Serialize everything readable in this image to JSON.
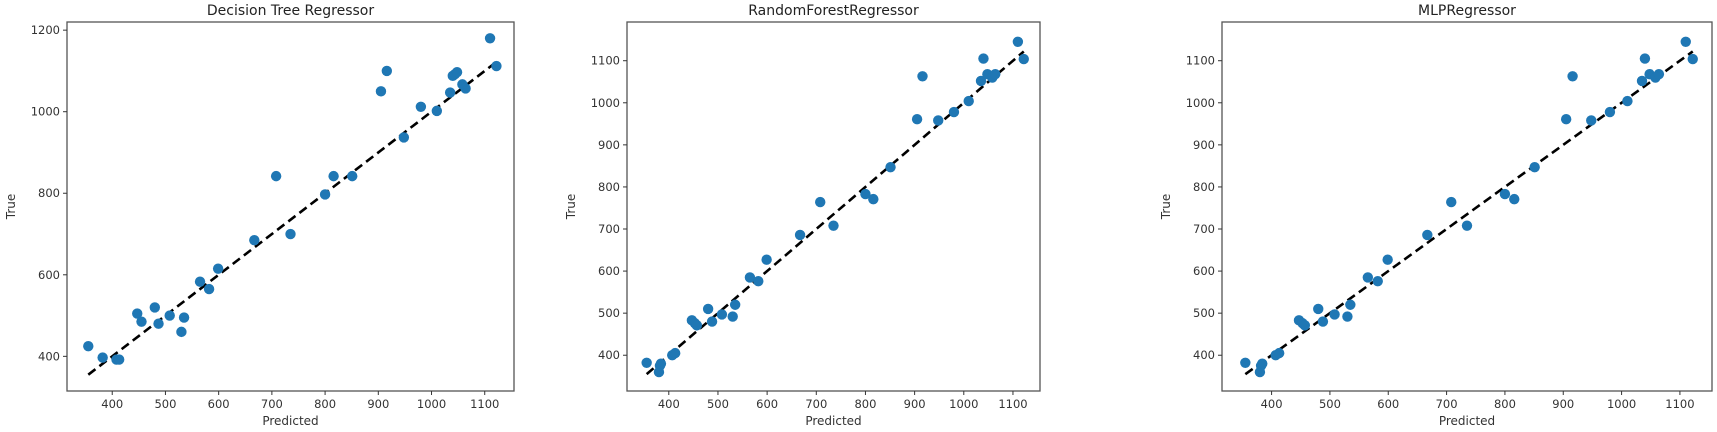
{
  "figure": {
    "background": "#ffffff",
    "marker_color": "#1f77b4",
    "line_color": "#000000"
  },
  "chart_data": [
    {
      "type": "scatter",
      "title": "Decision Tree Regressor",
      "xlabel": "Predicted",
      "ylabel": "True",
      "xlim": [
        315,
        1155
      ],
      "ylim": [
        315,
        1220
      ],
      "xticks": [
        400,
        500,
        600,
        700,
        800,
        900,
        1000,
        1100
      ],
      "yticks": [
        400,
        600,
        800,
        1000,
        1200
      ],
      "grid": false,
      "reference_line": {
        "style": "dashed",
        "from": [
          355,
          355
        ],
        "to": [
          1122,
          1122
        ]
      },
      "points": [
        [
          355,
          425
        ],
        [
          382,
          397
        ],
        [
          408,
          392
        ],
        [
          413,
          392
        ],
        [
          447,
          505
        ],
        [
          455,
          485
        ],
        [
          480,
          520
        ],
        [
          487,
          480
        ],
        [
          508,
          500
        ],
        [
          530,
          460
        ],
        [
          535,
          495
        ],
        [
          565,
          583
        ],
        [
          582,
          565
        ],
        [
          599,
          615
        ],
        [
          667,
          685
        ],
        [
          708,
          842
        ],
        [
          735,
          700
        ],
        [
          800,
          797
        ],
        [
          816,
          842
        ],
        [
          851,
          842
        ],
        [
          905,
          1050
        ],
        [
          916,
          1100
        ],
        [
          948,
          937
        ],
        [
          980,
          1012
        ],
        [
          1010,
          1002
        ],
        [
          1035,
          1047
        ],
        [
          1040,
          1088
        ],
        [
          1044,
          1092
        ],
        [
          1048,
          1097
        ],
        [
          1058,
          1067
        ],
        [
          1064,
          1057
        ],
        [
          1110,
          1180
        ],
        [
          1122,
          1112
        ]
      ]
    },
    {
      "type": "scatter",
      "title": "RandomForestRegressor",
      "xlabel": "Predicted",
      "ylabel": "True",
      "xlim": [
        315,
        1155
      ],
      "ylim": [
        315,
        1192
      ],
      "xticks": [
        400,
        500,
        600,
        700,
        800,
        900,
        1000,
        1100
      ],
      "yticks": [
        400,
        500,
        600,
        700,
        800,
        900,
        1000,
        1100
      ],
      "grid": false,
      "reference_line": {
        "style": "dashed",
        "from": [
          355,
          355
        ],
        "to": [
          1122,
          1122
        ]
      },
      "points": [
        [
          355,
          382
        ],
        [
          380,
          360
        ],
        [
          382,
          375
        ],
        [
          384,
          380
        ],
        [
          407,
          400
        ],
        [
          413,
          405
        ],
        [
          447,
          483
        ],
        [
          453,
          476
        ],
        [
          457,
          471
        ],
        [
          480,
          510
        ],
        [
          488,
          480
        ],
        [
          508,
          497
        ],
        [
          530,
          492
        ],
        [
          535,
          520
        ],
        [
          565,
          585
        ],
        [
          582,
          576
        ],
        [
          599,
          627
        ],
        [
          667,
          686
        ],
        [
          708,
          764
        ],
        [
          735,
          708
        ],
        [
          800,
          783
        ],
        [
          816,
          771
        ],
        [
          851,
          847
        ],
        [
          905,
          961
        ],
        [
          916,
          1063
        ],
        [
          948,
          958
        ],
        [
          980,
          978
        ],
        [
          1010,
          1004
        ],
        [
          1035,
          1052
        ],
        [
          1040,
          1105
        ],
        [
          1048,
          1068
        ],
        [
          1058,
          1060
        ],
        [
          1064,
          1068
        ],
        [
          1110,
          1145
        ],
        [
          1122,
          1104
        ]
      ]
    },
    {
      "type": "scatter",
      "title": "MLPRegressor",
      "xlabel": "Predicted",
      "ylabel": "True",
      "xlim": [
        315,
        1155
      ],
      "ylim": [
        315,
        1192
      ],
      "xticks": [
        400,
        500,
        600,
        700,
        800,
        900,
        1000,
        1100
      ],
      "yticks": [
        400,
        500,
        600,
        700,
        800,
        900,
        1000,
        1100
      ],
      "grid": false,
      "reference_line": {
        "style": "dashed",
        "from": [
          355,
          355
        ],
        "to": [
          1122,
          1122
        ]
      },
      "points": [
        [
          355,
          382
        ],
        [
          380,
          360
        ],
        [
          382,
          375
        ],
        [
          384,
          380
        ],
        [
          407,
          400
        ],
        [
          413,
          405
        ],
        [
          447,
          483
        ],
        [
          453,
          476
        ],
        [
          457,
          471
        ],
        [
          480,
          510
        ],
        [
          488,
          480
        ],
        [
          508,
          497
        ],
        [
          530,
          492
        ],
        [
          535,
          520
        ],
        [
          565,
          585
        ],
        [
          582,
          576
        ],
        [
          599,
          627
        ],
        [
          667,
          686
        ],
        [
          708,
          764
        ],
        [
          735,
          708
        ],
        [
          800,
          783
        ],
        [
          816,
          771
        ],
        [
          851,
          847
        ],
        [
          905,
          961
        ],
        [
          916,
          1063
        ],
        [
          948,
          958
        ],
        [
          980,
          978
        ],
        [
          1010,
          1004
        ],
        [
          1035,
          1052
        ],
        [
          1040,
          1105
        ],
        [
          1048,
          1068
        ],
        [
          1058,
          1060
        ],
        [
          1064,
          1068
        ],
        [
          1110,
          1145
        ],
        [
          1122,
          1104
        ]
      ]
    }
  ]
}
